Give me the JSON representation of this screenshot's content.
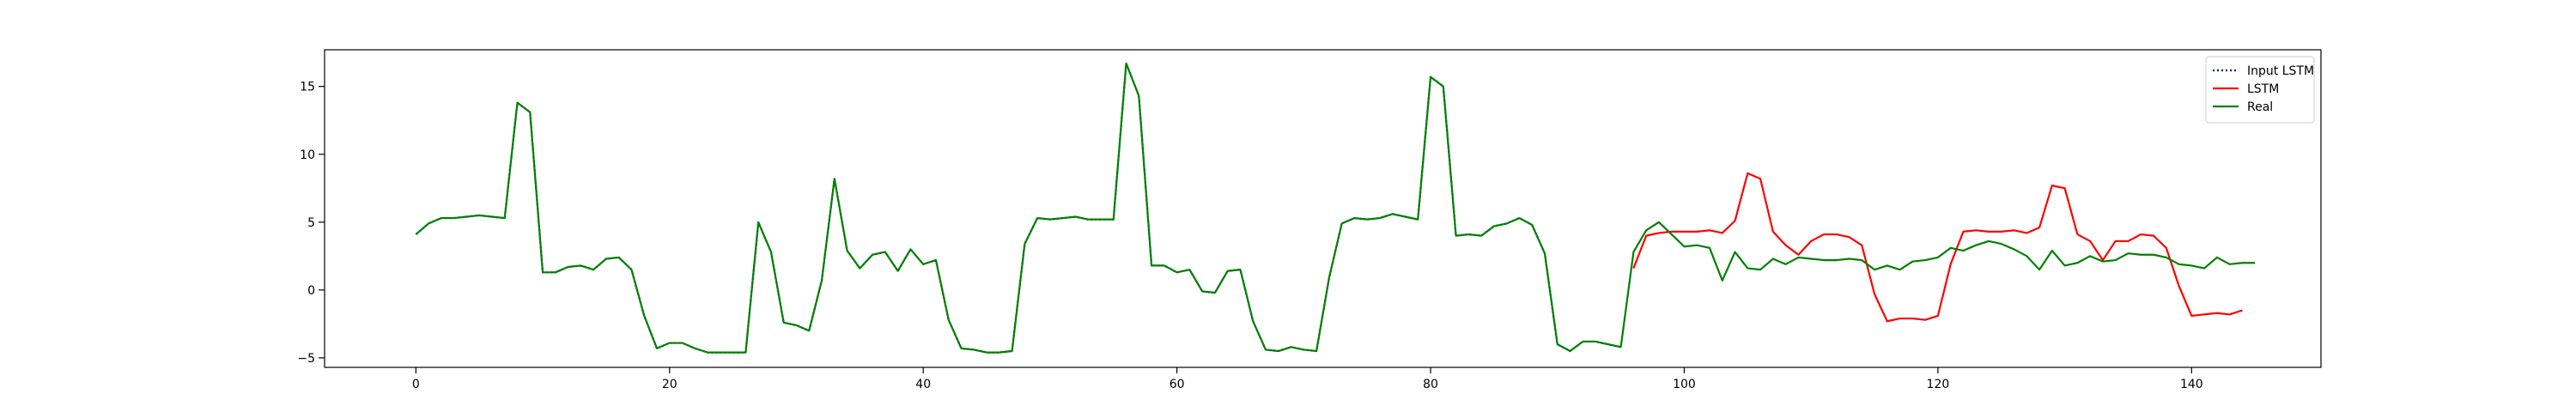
{
  "chart_data": {
    "type": "line",
    "title": "",
    "xlabel": "",
    "ylabel": "",
    "xlim": [
      -7.2,
      150.2
    ],
    "ylim": [
      -5.7,
      17.7
    ],
    "x_ticks": [
      0,
      20,
      40,
      60,
      80,
      100,
      120,
      140
    ],
    "y_ticks": [
      -5,
      0,
      5,
      10,
      15
    ],
    "x_tick_labels": [
      "0",
      "20",
      "40",
      "60",
      "80",
      "100",
      "120",
      "140"
    ],
    "y_tick_labels": [
      "−5",
      "0",
      "5",
      "10",
      "15"
    ],
    "grid": false,
    "legend_position": "top-right",
    "series": [
      {
        "name": "Input LSTM",
        "color": "#00008b",
        "style": "dotted",
        "x_start": 0,
        "values": [
          4.1,
          4.9,
          5.3,
          5.3,
          5.4,
          5.5,
          5.4,
          5.3,
          13.8,
          13.1,
          1.3,
          1.3,
          1.7,
          1.8,
          1.5,
          2.3,
          2.4,
          1.5,
          -1.9,
          -4.3,
          -3.9,
          -3.9,
          -4.3,
          -4.6,
          -4.6,
          -4.6,
          -4.6,
          5.0,
          2.8,
          -2.4,
          -2.6,
          -3.0,
          0.7,
          8.2,
          2.9,
          1.6,
          2.6,
          2.8,
          1.4,
          3.0,
          1.9,
          2.2,
          -2.2,
          -4.3,
          -4.4,
          -4.6,
          -4.6,
          -4.5,
          3.4,
          5.3,
          5.2,
          5.3,
          5.4,
          5.2,
          5.2,
          5.2,
          16.7,
          14.3,
          1.8,
          1.8,
          1.3,
          1.5,
          -0.1,
          -0.2,
          1.4,
          1.5,
          -2.3,
          -4.4,
          -4.5,
          -4.2,
          -4.4,
          -4.5,
          0.9,
          4.9,
          5.3,
          5.2,
          5.3,
          5.6,
          5.4,
          5.2,
          15.7,
          15.0,
          4.0,
          4.1,
          4.0,
          4.7,
          4.9,
          5.3,
          4.8,
          2.7,
          -4.0,
          -4.5,
          -3.8,
          -3.8,
          -4.0,
          -4.2
        ]
      },
      {
        "name": "LSTM",
        "color": "#ff0000",
        "style": "solid",
        "x_start": 96,
        "values": [
          1.6,
          4.0,
          4.2,
          4.3,
          4.3,
          4.3,
          4.4,
          4.2,
          5.1,
          8.6,
          8.2,
          4.3,
          3.3,
          2.6,
          3.6,
          4.1,
          4.1,
          3.9,
          3.3,
          -0.3,
          -2.3,
          -2.1,
          -2.1,
          -2.2,
          -1.9,
          1.9,
          4.3,
          4.4,
          4.3,
          4.3,
          4.4,
          4.2,
          4.6,
          7.7,
          7.5,
          4.1,
          3.6,
          2.2,
          3.6,
          3.6,
          4.1,
          4.0,
          3.1,
          0.3,
          -1.9,
          -1.8,
          -1.7,
          -1.8,
          -1.5
        ]
      },
      {
        "name": "Real",
        "color": "#008000",
        "style": "solid",
        "x_start": 0,
        "values": [
          4.1,
          4.9,
          5.3,
          5.3,
          5.4,
          5.5,
          5.4,
          5.3,
          13.8,
          13.1,
          1.3,
          1.3,
          1.7,
          1.8,
          1.5,
          2.3,
          2.4,
          1.5,
          -1.9,
          -4.3,
          -3.9,
          -3.9,
          -4.3,
          -4.6,
          -4.6,
          -4.6,
          -4.6,
          5.0,
          2.8,
          -2.4,
          -2.6,
          -3.0,
          0.7,
          8.2,
          2.9,
          1.6,
          2.6,
          2.8,
          1.4,
          3.0,
          1.9,
          2.2,
          -2.2,
          -4.3,
          -4.4,
          -4.6,
          -4.6,
          -4.5,
          3.4,
          5.3,
          5.2,
          5.3,
          5.4,
          5.2,
          5.2,
          5.2,
          16.7,
          14.3,
          1.8,
          1.8,
          1.3,
          1.5,
          -0.1,
          -0.2,
          1.4,
          1.5,
          -2.3,
          -4.4,
          -4.5,
          -4.2,
          -4.4,
          -4.5,
          0.9,
          4.9,
          5.3,
          5.2,
          5.3,
          5.6,
          5.4,
          5.2,
          15.7,
          15.0,
          4.0,
          4.1,
          4.0,
          4.7,
          4.9,
          5.3,
          4.8,
          2.7,
          -4.0,
          -4.5,
          -3.8,
          -3.8,
          -4.0,
          -4.2,
          2.8,
          4.4,
          5.0,
          4.1,
          3.2,
          3.3,
          3.1,
          0.7,
          2.8,
          1.6,
          1.5,
          2.3,
          1.9,
          2.4,
          2.3,
          2.2,
          2.2,
          2.3,
          2.2,
          1.5,
          1.8,
          1.5,
          2.1,
          2.2,
          2.4,
          3.1,
          2.9,
          3.3,
          3.6,
          3.4,
          3.0,
          2.5,
          1.5,
          2.9,
          1.8,
          2.0,
          2.5,
          2.1,
          2.2,
          2.7,
          2.6,
          2.6,
          2.4,
          1.9,
          1.8,
          1.6,
          2.4,
          1.9,
          2.0,
          2.0
        ]
      }
    ]
  }
}
